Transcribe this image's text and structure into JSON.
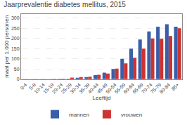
{
  "chart_data": {
    "type": "bar",
    "title": "Jaarprevalentie diabetes mellitus, 2015",
    "xlabel": "Leeftijd",
    "ylabel": "maal per 1.000 personen",
    "categories": [
      "0-4",
      "5-9",
      "10-14",
      "15-19",
      "20-24",
      "25-29",
      "30-34",
      "35-39",
      "40-44",
      "45-49",
      "50-54",
      "55-59",
      "60-64",
      "65-69",
      "70-74",
      "75-79",
      "80-84",
      "85+"
    ],
    "series": [
      {
        "name": "mannen",
        "color": "#3a5fa8",
        "values": [
          0.5,
          0.5,
          0.5,
          1.0,
          2.0,
          3.0,
          7.0,
          10.0,
          20.0,
          32.0,
          50.0,
          100.0,
          150.0,
          195.0,
          235.0,
          258.0,
          270.0,
          258.0
        ]
      },
      {
        "name": "vrouwen",
        "color": "#cc3333",
        "values": [
          0.5,
          0.5,
          0.5,
          2.0,
          3.0,
          8.0,
          10.0,
          12.0,
          22.0,
          28.0,
          52.0,
          78.0,
          105.0,
          150.0,
          200.0,
          198.0,
          212.0,
          250.0
        ]
      }
    ],
    "ylim": [
      0,
      320
    ],
    "yticks": [
      0,
      50,
      100,
      150,
      200,
      250,
      300
    ],
    "grid": true,
    "legend": "bottom"
  }
}
